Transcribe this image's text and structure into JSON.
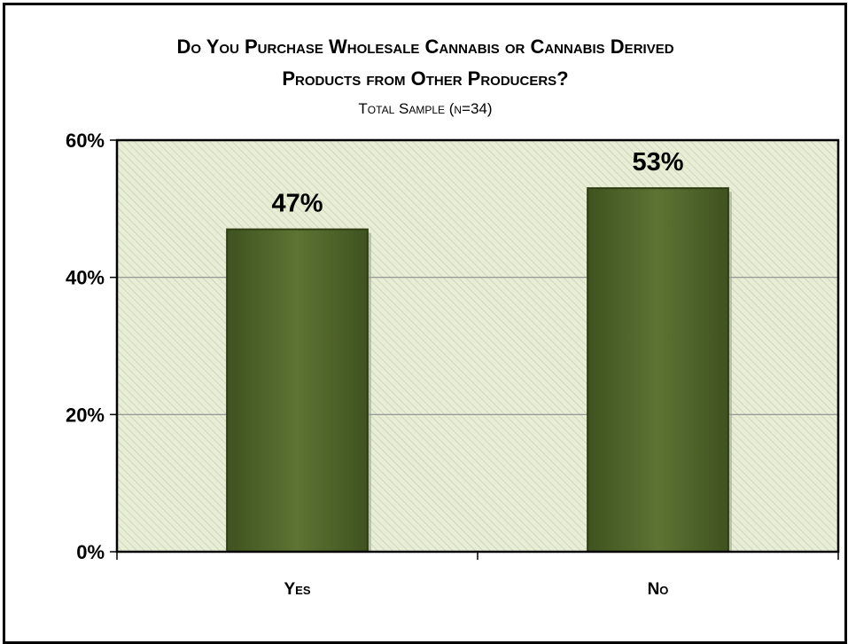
{
  "chart_data": {
    "type": "bar",
    "title_lines": [
      "Do You Purchase Wholesale Cannabis or Cannabis Derived",
      "Products from Other Producers?"
    ],
    "subtitle": "Total Sample (n=34)",
    "categories": [
      "Yes",
      "No"
    ],
    "values": [
      47,
      53
    ],
    "data_labels": [
      "47%",
      "53%"
    ],
    "y_ticks": [
      0,
      20,
      40,
      60
    ],
    "y_tick_labels": [
      "0%",
      "20%",
      "40%",
      "60%"
    ],
    "ylim": [
      0,
      60
    ],
    "xlabel": "",
    "ylabel": "",
    "grid": true,
    "legend": "none",
    "colors": {
      "bar_fill": "#556b2f",
      "bar_edge": "#2e3d12",
      "plot_background": "#e8edd6",
      "hatch": "#c8d0b0",
      "gridline": "#8c8c8c"
    }
  }
}
